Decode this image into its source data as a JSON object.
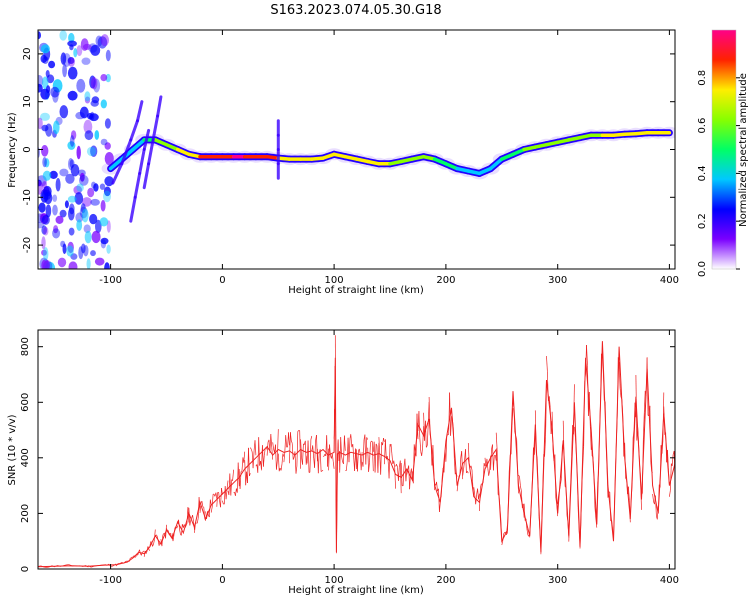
{
  "title": "S163.2023.074.05.30.G18",
  "chart_data": [
    {
      "type": "heatmap",
      "xlabel": "Height of straight line (km)",
      "ylabel": "Frequency (Hz)",
      "xlim": [
        -165,
        405
      ],
      "ylim": [
        -25,
        25
      ],
      "xticks": [
        -100,
        0,
        100,
        200,
        300,
        400
      ],
      "yticks": [
        -20,
        -10,
        0,
        10,
        20
      ],
      "colorbar": {
        "label": "Normalized spectral amplitude",
        "range": [
          0,
          1
        ],
        "ticks": [
          "0.0",
          "0.2",
          "0.4",
          "0.6",
          "0.8"
        ],
        "colors": [
          "#ffffff",
          "#7a00ff",
          "#0000ff",
          "#00c8ff",
          "#00ff66",
          "#88ff00",
          "#ffee00",
          "#ff2200",
          "#ff0088"
        ]
      },
      "ridge": {
        "x": [
          -100,
          -90,
          -80,
          -70,
          -60,
          -50,
          -40,
          -30,
          -20,
          -10,
          0,
          10,
          20,
          30,
          40,
          50,
          60,
          70,
          80,
          90,
          100,
          110,
          120,
          130,
          140,
          150,
          160,
          170,
          180,
          190,
          200,
          210,
          220,
          230,
          240,
          250,
          260,
          270,
          280,
          290,
          300,
          310,
          320,
          330,
          340,
          350,
          360,
          370,
          380,
          390,
          400
        ],
        "y": [
          -4,
          -2,
          0,
          2,
          2,
          1,
          0,
          -1,
          -1.5,
          -1.5,
          -1.5,
          -1.5,
          -1.5,
          -1.5,
          -1.5,
          -1.8,
          -2,
          -2,
          -2,
          -1.8,
          -1,
          -1.5,
          -2,
          -2.5,
          -3,
          -3,
          -2.5,
          -2,
          -1.5,
          -2,
          -3,
          -4,
          -4.5,
          -5,
          -4,
          -2,
          -1,
          0,
          0.5,
          1,
          1.5,
          2,
          2.5,
          3,
          3,
          3,
          3.2,
          3.3,
          3.5,
          3.5,
          3.5
        ],
        "amplitude": [
          0.3,
          0.35,
          0.4,
          0.45,
          0.55,
          0.6,
          0.7,
          0.75,
          0.8,
          0.85,
          0.9,
          0.95,
          0.95,
          0.9,
          0.85,
          0.8,
          0.75,
          0.75,
          0.8,
          0.75,
          0.7,
          0.75,
          0.8,
          0.8,
          0.75,
          0.7,
          0.65,
          0.65,
          0.6,
          0.55,
          0.5,
          0.45,
          0.4,
          0.35,
          0.4,
          0.45,
          0.5,
          0.55,
          0.6,
          0.6,
          0.6,
          0.62,
          0.65,
          0.65,
          0.68,
          0.7,
          0.7,
          0.72,
          0.75,
          0.75,
          0.75
        ]
      },
      "features": [
        {
          "x": [
            -98,
            -90,
            -82,
            -76,
            -72
          ],
          "y": [
            -7,
            -3,
            2,
            6,
            10
          ]
        },
        {
          "x": [
            -82,
            -78,
            -74,
            -70,
            -66
          ],
          "y": [
            -15,
            -10,
            -5,
            0,
            4
          ]
        },
        {
          "x": [
            -70,
            -66,
            -62,
            -58,
            -55
          ],
          "y": [
            -8,
            -3,
            2,
            7,
            11
          ]
        },
        {
          "x": [
            50,
            50,
            50,
            50,
            50
          ],
          "y": [
            -6,
            -3,
            0,
            3,
            6
          ]
        }
      ]
    },
    {
      "type": "line",
      "xlabel": "Height of straight line (km)",
      "ylabel": "SNR (10 * v/v)",
      "xlim": [
        -165,
        405
      ],
      "ylim": [
        0,
        860
      ],
      "xticks": [
        -100,
        0,
        100,
        200,
        300,
        400
      ],
      "yticks": [
        0,
        200,
        400,
        600,
        800
      ],
      "series": [
        {
          "color": "#ee2222",
          "x": [
            -165,
            -150,
            -135,
            -120,
            -105,
            -95,
            -85,
            -80,
            -75,
            -70,
            -65,
            -60,
            -55,
            -50,
            -45,
            -40,
            -35,
            -30,
            -25,
            -20,
            -15,
            -10,
            -5,
            0,
            5,
            10,
            15,
            20,
            25,
            30,
            35,
            40,
            45,
            50,
            55,
            60,
            65,
            70,
            75,
            80,
            85,
            90,
            95,
            100,
            101,
            102,
            103,
            105,
            110,
            115,
            120,
            125,
            130,
            135,
            140,
            145,
            150,
            155,
            160,
            165,
            170,
            175,
            180,
            185,
            190,
            195,
            200,
            205,
            210,
            215,
            220,
            225,
            230,
            235,
            240,
            245,
            250,
            255,
            260,
            265,
            270,
            275,
            280,
            285,
            290,
            295,
            300,
            305,
            310,
            315,
            320,
            325,
            330,
            335,
            340,
            345,
            350,
            355,
            360,
            365,
            370,
            375,
            380,
            385,
            390,
            395,
            400,
            405
          ],
          "y": [
            8,
            10,
            12,
            10,
            14,
            15,
            25,
            40,
            60,
            55,
            80,
            120,
            90,
            140,
            110,
            170,
            130,
            200,
            150,
            240,
            180,
            230,
            250,
            270,
            290,
            310,
            330,
            360,
            380,
            400,
            420,
            440,
            410,
            430,
            420,
            425,
            410,
            430,
            420,
            425,
            415,
            430,
            410,
            420,
            760,
            60,
            415,
            420,
            410,
            420,
            415,
            410,
            420,
            410,
            415,
            405,
            390,
            340,
            330,
            360,
            320,
            520,
            480,
            540,
            300,
            240,
            460,
            580,
            300,
            380,
            400,
            260,
            240,
            360,
            400,
            430,
            100,
            140,
            640,
            300,
            200,
            120,
            520,
            60,
            680,
            500,
            200,
            460,
            120,
            600,
            80,
            760,
            500,
            160,
            820,
            300,
            100,
            800,
            400,
            180,
            620,
            250,
            720,
            300,
            200,
            560,
            300,
            380
          ]
        }
      ]
    }
  ]
}
